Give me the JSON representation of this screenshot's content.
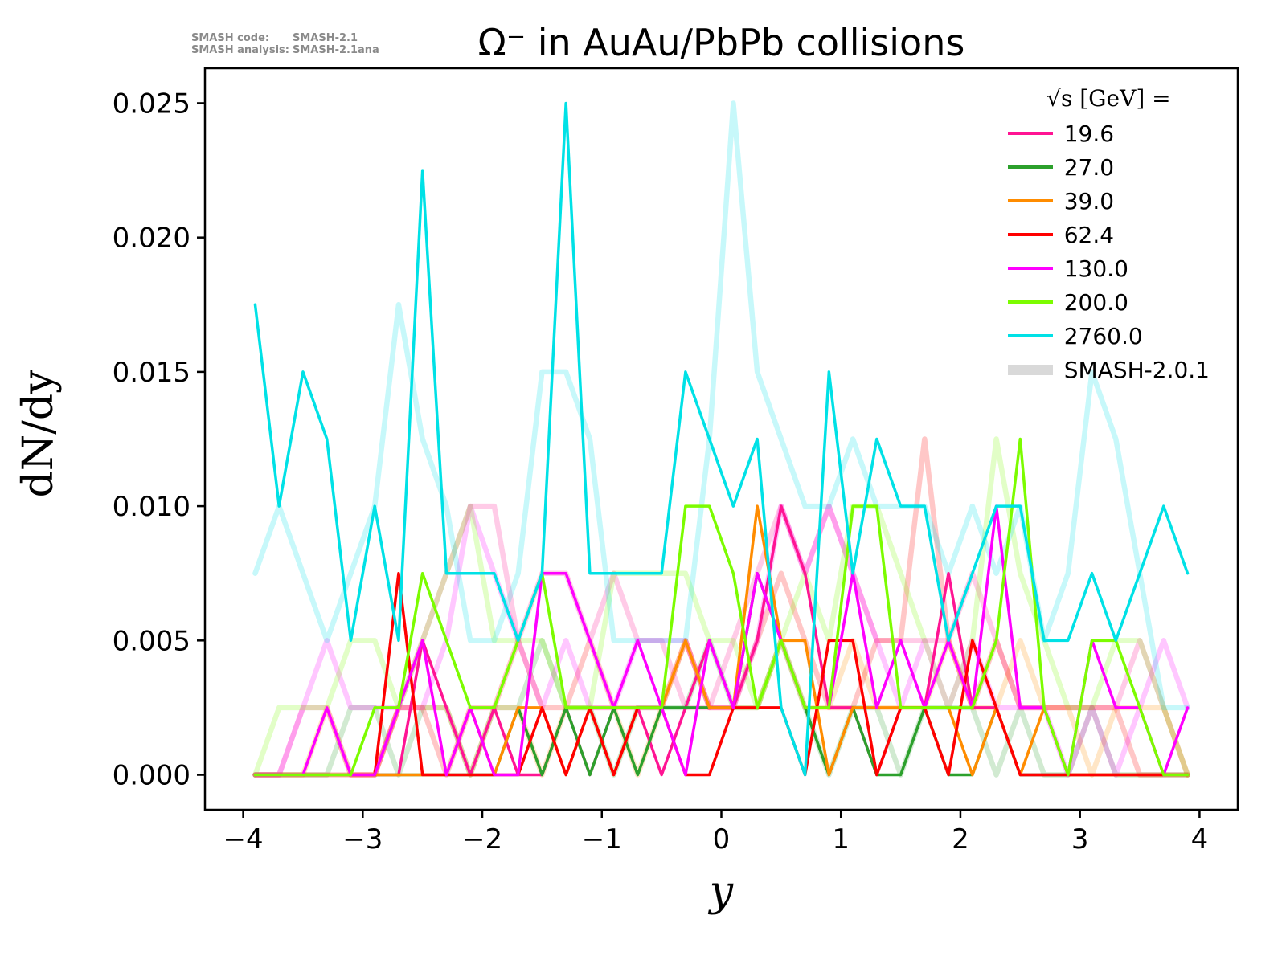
{
  "annotation": {
    "code_label": "SMASH code:",
    "code_value": "SMASH-2.1",
    "analysis_label": "SMASH analysis:",
    "analysis_value": "SMASH-2.1ana"
  },
  "chart_data": {
    "type": "line",
    "title": "Ω⁻ in AuAu/PbPb collisions",
    "xlabel": "y",
    "ylabel": "dN/dy",
    "legend_title": "√s  [GeV] =",
    "legend_position": "upper right",
    "grid": false,
    "xlim": [
      -4.32,
      4.32
    ],
    "ylim": [
      -0.0013,
      0.0263
    ],
    "xticks": [
      -4,
      -3,
      -2,
      -1,
      0,
      1,
      2,
      3,
      4
    ],
    "xtick_labels": [
      "−4",
      "−3",
      "−2",
      "−1",
      "0",
      "1",
      "2",
      "3",
      "4"
    ],
    "yticks": [
      0.0,
      0.005,
      0.01,
      0.015,
      0.02,
      0.025
    ],
    "ytick_labels": [
      "0.000",
      "0.005",
      "0.010",
      "0.015",
      "0.020",
      "0.025"
    ],
    "x": [
      -3.9,
      -3.7,
      -3.5,
      -3.3,
      -3.1,
      -2.9,
      -2.7,
      -2.5,
      -2.3,
      -2.1,
      -1.9,
      -1.7,
      -1.5,
      -1.3,
      -1.1,
      -0.9,
      -0.7,
      -0.5,
      -0.3,
      -0.1,
      0.1,
      0.3,
      0.5,
      0.7,
      0.9,
      1.1,
      1.3,
      1.5,
      1.7,
      1.9,
      2.1,
      2.3,
      2.5,
      2.7,
      2.9,
      3.1,
      3.3,
      3.5,
      3.7,
      3.9
    ],
    "series": [
      {
        "name": "19.6",
        "color": "#ff1493",
        "values": [
          0,
          0,
          0,
          0,
          0,
          0,
          0,
          0.005,
          0.0025,
          0,
          0.0025,
          0,
          0,
          0.0025,
          0,
          0.0025,
          0.0025,
          0,
          0.0025,
          0.005,
          0.0025,
          0.005,
          0.01,
          0.0075,
          0.0025,
          0.0025,
          0,
          0.0025,
          0.0025,
          0.0075,
          0.0025,
          0.0025,
          0,
          0,
          0,
          0,
          0,
          0,
          0,
          0
        ]
      },
      {
        "name": "27.0",
        "color": "#2ca02c",
        "values": [
          0,
          0,
          0,
          0,
          0,
          0,
          0,
          0,
          0,
          0,
          0,
          0.0025,
          0,
          0.0025,
          0,
          0.0025,
          0,
          0.0025,
          0.0025,
          0.0025,
          0.0025,
          0.0075,
          0.005,
          0.0025,
          0,
          0.0025,
          0,
          0,
          0.0025,
          0,
          0,
          0.0025,
          0,
          0,
          0,
          0,
          0,
          0,
          0,
          0
        ]
      },
      {
        "name": "39.0",
        "color": "#ff8c00",
        "values": [
          0,
          0,
          0,
          0,
          0,
          0,
          0,
          0,
          0,
          0.0025,
          0,
          0.0025,
          0.0025,
          0,
          0.0025,
          0,
          0.0025,
          0.0025,
          0.005,
          0.0025,
          0.0025,
          0.01,
          0.005,
          0.005,
          0,
          0.0025,
          0.0025,
          0.0025,
          0.0025,
          0.0025,
          0,
          0.0025,
          0,
          0.0025,
          0,
          0,
          0,
          0,
          0,
          0
        ]
      },
      {
        "name": "62.4",
        "color": "#ff0000",
        "values": [
          0,
          0,
          0,
          0,
          0,
          0,
          0.0075,
          0,
          0,
          0,
          0,
          0,
          0.0025,
          0,
          0.0025,
          0,
          0.0025,
          0.0025,
          0,
          0,
          0.0025,
          0.0025,
          0.0025,
          0,
          0.005,
          0.005,
          0,
          0.0025,
          0.0025,
          0,
          0.005,
          0.0025,
          0,
          0,
          0,
          0,
          0,
          0,
          0,
          0
        ]
      },
      {
        "name": "130.0",
        "color": "#ff00ff",
        "values": [
          0,
          0,
          0,
          0.0025,
          0,
          0,
          0.0025,
          0.005,
          0,
          0.0025,
          0,
          0,
          0.0075,
          0.0075,
          0.005,
          0.0025,
          0.005,
          0.0025,
          0,
          0.005,
          0.0025,
          0.0075,
          0.005,
          0.0025,
          0.0025,
          0.0075,
          0.0025,
          0.005,
          0.0025,
          0.005,
          0.0025,
          0.01,
          0.0025,
          0.0025,
          0,
          0.005,
          0.0025,
          0.0025,
          0,
          0.0025
        ]
      },
      {
        "name": "200.0",
        "color": "#7cfc00",
        "values": [
          0,
          0,
          0,
          0,
          0,
          0.0025,
          0.0025,
          0.0075,
          0.005,
          0.0025,
          0.0025,
          0.005,
          0.0075,
          0.0025,
          0.0025,
          0.0025,
          0.0025,
          0.0025,
          0.01,
          0.01,
          0.0075,
          0.0025,
          0.005,
          0.0025,
          0.0025,
          0.01,
          0.01,
          0.0025,
          0.0025,
          0.0025,
          0.0025,
          0.005,
          0.0125,
          0.0025,
          0,
          0.005,
          0.005,
          0.0025,
          0,
          0
        ]
      },
      {
        "name": "2760.0",
        "color": "#00e1e6",
        "values": [
          0.0175,
          0.01,
          0.015,
          0.0125,
          0.005,
          0.01,
          0.005,
          0.0225,
          0.0075,
          0.0075,
          0.0075,
          0.005,
          0.0075,
          0.025,
          0.0075,
          0.0075,
          0.0075,
          0.0075,
          0.015,
          0.0125,
          0.01,
          0.0125,
          0.0025,
          0,
          0.015,
          0.0075,
          0.0125,
          0.01,
          0.01,
          0.005,
          0.0075,
          0.01,
          0.01,
          0.005,
          0.005,
          0.0075,
          0.005,
          0.0075,
          0.01,
          0.0075
        ]
      }
    ],
    "smash201_series": [
      {
        "name": "19.6 SMASH-2.0.1",
        "color": "#ff1493",
        "values": [
          0,
          0,
          0.0025,
          0.0025,
          0,
          0,
          0.0025,
          0.005,
          0.0075,
          0.01,
          0.01,
          0.005,
          0.0075,
          0.0075,
          0.005,
          0.0075,
          0.005,
          0.005,
          0.0025,
          0.0025,
          0.005,
          0.0075,
          0.01,
          0.0075,
          0.01,
          0.0075,
          0.005,
          0.005,
          0.005,
          0.005,
          0.0075,
          0.005,
          0.0025,
          0.0025,
          0.0025,
          0.0025,
          0.0025,
          0.005,
          0.0025,
          0
        ]
      },
      {
        "name": "27.0 SMASH-2.0.1",
        "color": "#2ca02c",
        "values": [
          0,
          0,
          0,
          0,
          0.0025,
          0.0025,
          0,
          0.0025,
          0.0025,
          0,
          0.0025,
          0.0025,
          0.005,
          0.0025,
          0.0025,
          0,
          0.0025,
          0.0025,
          0.0025,
          0.005,
          0.0025,
          0.0025,
          0.005,
          0.0025,
          0,
          0.0025,
          0.0025,
          0,
          0.0025,
          0.0025,
          0.0025,
          0,
          0.0025,
          0,
          0,
          0.0025,
          0,
          0,
          0,
          0
        ]
      },
      {
        "name": "39.0 SMASH-2.0.1",
        "color": "#ff8c00",
        "values": [
          0,
          0,
          0,
          0.0025,
          0,
          0,
          0.0025,
          0.0025,
          0.0025,
          0,
          0.0025,
          0.0025,
          0,
          0.0025,
          0.0025,
          0.0025,
          0,
          0.0025,
          0.005,
          0.0025,
          0.0025,
          0.0025,
          0.005,
          0.0025,
          0.0025,
          0.005,
          0.0025,
          0.0025,
          0.0025,
          0.005,
          0.0025,
          0.0025,
          0.005,
          0.0025,
          0.0025,
          0,
          0.0025,
          0.0025,
          0.0025,
          0
        ]
      },
      {
        "name": "62.4 SMASH-2.0.1",
        "color": "#ff0000",
        "values": [
          0,
          0,
          0,
          0,
          0,
          0,
          0.0025,
          0.0025,
          0,
          0.0025,
          0.0025,
          0.005,
          0.0025,
          0.0025,
          0.005,
          0.0025,
          0.0025,
          0.0025,
          0.005,
          0.0025,
          0.0025,
          0.005,
          0.0075,
          0.005,
          0.0025,
          0.0025,
          0.005,
          0.005,
          0.0125,
          0.005,
          0.0025,
          0.005,
          0.0025,
          0.0025,
          0.0025,
          0.0025,
          0.0025,
          0,
          0,
          0
        ]
      },
      {
        "name": "130.0 SMASH-2.0.1",
        "color": "#ff00ff",
        "values": [
          0,
          0,
          0.0025,
          0.005,
          0.0025,
          0.0025,
          0.0025,
          0.0025,
          0.005,
          0.01,
          0.0075,
          0.005,
          0.0025,
          0.005,
          0.0025,
          0.0025,
          0.005,
          0.005,
          0.005,
          0.0025,
          0.0025,
          0.005,
          0.01,
          0.0075,
          0.01,
          0.0075,
          0.005,
          0.0025,
          0.005,
          0.0025,
          0.005,
          0.0025,
          0.0025,
          0.0025,
          0,
          0.0025,
          0,
          0.0025,
          0.005,
          0.0025
        ]
      },
      {
        "name": "200.0 SMASH-2.0.1",
        "color": "#7cfc00",
        "values": [
          0,
          0.0025,
          0.0025,
          0.0025,
          0.005,
          0.005,
          0.0025,
          0.005,
          0.0075,
          0.01,
          0.005,
          0.005,
          0.005,
          0.0025,
          0.0025,
          0.0075,
          0.0075,
          0.0075,
          0.0075,
          0.005,
          0.005,
          0.0025,
          0.005,
          0.0075,
          0.005,
          0.01,
          0.01,
          0.0075,
          0.005,
          0.0025,
          0.005,
          0.0125,
          0.0075,
          0.005,
          0.0025,
          0.0025,
          0.005,
          0.005,
          0.0025,
          0
        ]
      },
      {
        "name": "2760.0 SMASH-2.0.1",
        "color": "#00e1e6",
        "values": [
          0.0075,
          0.01,
          0.0075,
          0.005,
          0.0075,
          0.01,
          0.0175,
          0.0125,
          0.01,
          0.005,
          0.005,
          0.0075,
          0.015,
          0.015,
          0.0125,
          0.005,
          0.005,
          0.005,
          0.005,
          0.0125,
          0.025,
          0.015,
          0.0125,
          0.01,
          0.01,
          0.0125,
          0.01,
          0.01,
          0.01,
          0.0075,
          0.01,
          0.0075,
          0.01,
          0.005,
          0.0075,
          0.015,
          0.0125,
          0.0075,
          0.0025,
          0.0025
        ]
      }
    ],
    "legend_extra": {
      "name": "SMASH-2.0.1",
      "color": "#d9d9d9"
    }
  }
}
